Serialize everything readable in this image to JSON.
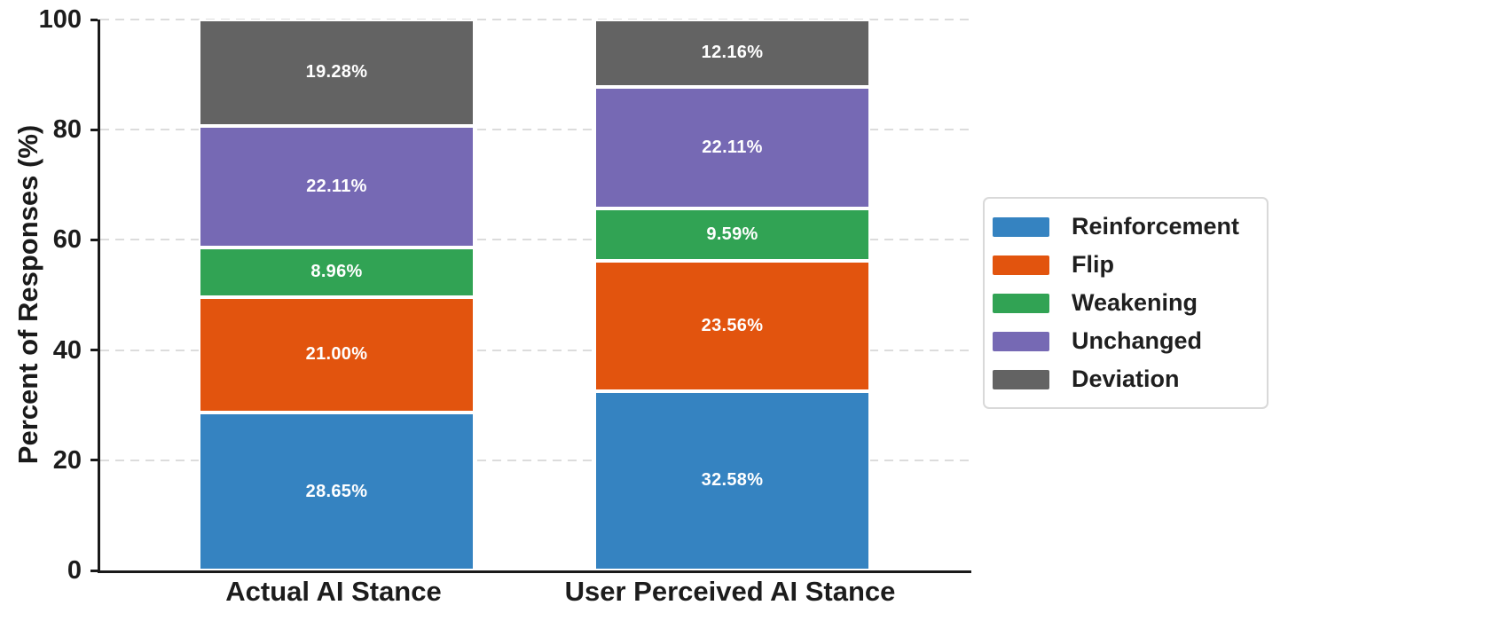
{
  "chart_data": {
    "type": "bar",
    "stacked": true,
    "title": "",
    "xlabel": "",
    "ylabel": "Percent of Responses (%)",
    "ylim": [
      0,
      100
    ],
    "yticks": [
      0,
      20,
      40,
      60,
      80,
      100
    ],
    "grid": "horizontal-dashed",
    "legend_position": "center-right",
    "categories": [
      "Actual AI Stance",
      "User Perceived AI Stance"
    ],
    "series": [
      {
        "name": "Reinforcement",
        "color": "#3583c1",
        "values": [
          28.65,
          32.58
        ],
        "labels": [
          "28.65%",
          "32.58%"
        ]
      },
      {
        "name": "Flip",
        "color": "#e2540e",
        "values": [
          21.0,
          23.56
        ],
        "labels": [
          "21.00%",
          "23.56%"
        ]
      },
      {
        "name": "Weakening",
        "color": "#31a354",
        "values": [
          8.96,
          9.59
        ],
        "labels": [
          "8.96%",
          "9.59%"
        ]
      },
      {
        "name": "Unchanged",
        "color": "#7669b4",
        "values": [
          22.11,
          22.11
        ],
        "labels": [
          "22.11%",
          "22.11%"
        ]
      },
      {
        "name": "Deviation",
        "color": "#636363",
        "values": [
          19.28,
          12.16
        ],
        "labels": [
          "19.28%",
          "12.16%"
        ]
      }
    ],
    "colors": {
      "axis": "#1a1a1a",
      "tick_text": "#1c1c1c",
      "gridline": "#dcdcdc",
      "bar_label_text": "#ffffff",
      "legend_border": "#d9d9d9",
      "background": "#ffffff"
    }
  }
}
